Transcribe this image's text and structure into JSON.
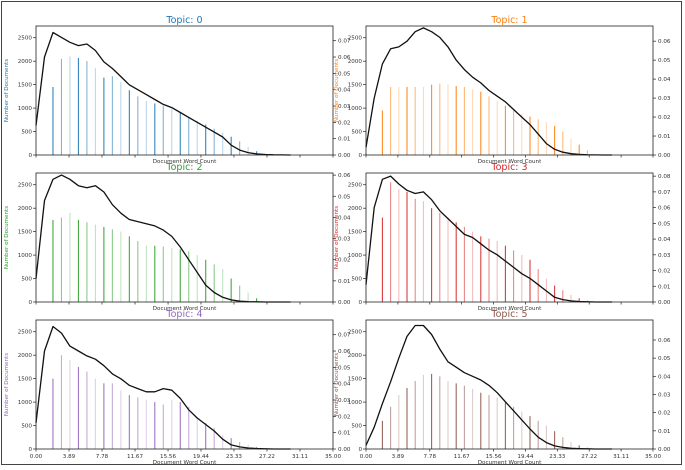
{
  "figure": {
    "xlabel": "Document Word Count",
    "ylabel": "Number of Documents",
    "xticks": [
      "0.00",
      "3.89",
      "7.78",
      "11.67",
      "15.56",
      "19.44",
      "23.33",
      "27.22",
      "31.11",
      "35.00"
    ],
    "left_ticks": [
      0,
      500,
      1000,
      1500,
      2000,
      2500
    ]
  },
  "chart_data": [
    {
      "type": "bar",
      "title": "Topic: 0",
      "color": "#1f77b4",
      "xlim": [
        0,
        35
      ],
      "ylim_left": [
        0,
        2750
      ],
      "ylim_right": [
        0,
        0.079
      ],
      "right_ticks": [
        "0.00",
        "0.01",
        "0.02",
        "0.03",
        "0.04",
        "0.05",
        "0.06",
        "0.07"
      ],
      "x": [
        2,
        3,
        4,
        5,
        6,
        7,
        8,
        9,
        10,
        11,
        12,
        13,
        14,
        15,
        16,
        17,
        18,
        19,
        20,
        21,
        22,
        23,
        24,
        25,
        26,
        27
      ],
      "values": [
        1450,
        2050,
        2100,
        2070,
        2000,
        1850,
        1650,
        1680,
        1550,
        1380,
        1250,
        1150,
        1100,
        1050,
        980,
        900,
        820,
        730,
        650,
        560,
        480,
        390,
        290,
        170,
        80,
        30
      ],
      "density_x": [
        0,
        1,
        2,
        3,
        4,
        5,
        6,
        7,
        8,
        9,
        10,
        11,
        12,
        13,
        14,
        15,
        16,
        17,
        18,
        19,
        20,
        21,
        22,
        23,
        24,
        25,
        26,
        27,
        28,
        29,
        30
      ],
      "density_y": [
        0.018,
        0.06,
        0.075,
        0.072,
        0.069,
        0.067,
        0.068,
        0.064,
        0.057,
        0.053,
        0.048,
        0.043,
        0.04,
        0.037,
        0.034,
        0.031,
        0.029,
        0.026,
        0.023,
        0.02,
        0.017,
        0.014,
        0.011,
        0.006,
        0.003,
        0.0015,
        0.0007,
        0.0003,
        0.0001,
        5e-05,
        0
      ]
    },
    {
      "type": "bar",
      "title": "Topic: 1",
      "color": "#ff7f0e",
      "xlim": [
        0,
        35
      ],
      "ylim_left": [
        0,
        2750
      ],
      "ylim_right": [
        0,
        0.068
      ],
      "right_ticks": [
        "0.00",
        "0.01",
        "0.02",
        "0.03",
        "0.04",
        "0.05",
        "0.06"
      ],
      "x": [
        2,
        3,
        4,
        5,
        6,
        7,
        8,
        9,
        10,
        11,
        12,
        13,
        14,
        15,
        16,
        17,
        18,
        19,
        20,
        21,
        22,
        23,
        24,
        25,
        26,
        27
      ],
      "values": [
        950,
        1450,
        1450,
        1450,
        1450,
        1450,
        1500,
        1520,
        1500,
        1470,
        1450,
        1400,
        1350,
        1250,
        1150,
        1050,
        950,
        880,
        820,
        760,
        700,
        620,
        500,
        350,
        220,
        100
      ],
      "density_x": [
        0,
        1,
        2,
        3,
        4,
        5,
        6,
        7,
        8,
        9,
        10,
        11,
        12,
        13,
        14,
        15,
        16,
        17,
        18,
        19,
        20,
        21,
        22,
        23,
        24,
        25,
        26,
        27,
        28,
        29,
        30
      ],
      "density_y": [
        0.004,
        0.03,
        0.048,
        0.056,
        0.057,
        0.06,
        0.065,
        0.067,
        0.065,
        0.062,
        0.057,
        0.05,
        0.045,
        0.041,
        0.038,
        0.034,
        0.031,
        0.028,
        0.024,
        0.02,
        0.016,
        0.011,
        0.006,
        0.003,
        0.0015,
        0.0007,
        0.0003,
        0.0001,
        5e-05,
        0,
        0
      ]
    },
    {
      "type": "bar",
      "title": "Topic: 2",
      "color": "#2ca02c",
      "xlim": [
        0,
        35
      ],
      "ylim_left": [
        0,
        2750
      ],
      "ylim_right": [
        0,
        0.061
      ],
      "right_ticks": [
        "0.00",
        "0.01",
        "0.02",
        "0.03",
        "0.04",
        "0.05",
        "0.06"
      ],
      "x": [
        2,
        3,
        4,
        5,
        6,
        7,
        8,
        9,
        10,
        11,
        12,
        13,
        14,
        15,
        16,
        17,
        18,
        19,
        20,
        21,
        22,
        23,
        24,
        25,
        26
      ],
      "values": [
        1750,
        1800,
        1900,
        1750,
        1700,
        1650,
        1600,
        1550,
        1500,
        1400,
        1300,
        1200,
        1200,
        1180,
        1150,
        1120,
        1080,
        1000,
        900,
        800,
        700,
        500,
        350,
        200,
        80
      ],
      "density_x": [
        0,
        1,
        2,
        3,
        4,
        5,
        6,
        7,
        8,
        9,
        10,
        11,
        12,
        13,
        14,
        15,
        16,
        17,
        18,
        19,
        20,
        21,
        22,
        23,
        24,
        25,
        26,
        27,
        28,
        29,
        30
      ],
      "density_y": [
        0.011,
        0.048,
        0.058,
        0.06,
        0.058,
        0.055,
        0.054,
        0.055,
        0.052,
        0.046,
        0.042,
        0.039,
        0.038,
        0.037,
        0.036,
        0.034,
        0.031,
        0.026,
        0.02,
        0.014,
        0.008,
        0.0045,
        0.0022,
        0.001,
        0.0004,
        0.0002,
        0.0001,
        0,
        0,
        0,
        0
      ]
    },
    {
      "type": "bar",
      "title": "Topic: 3",
      "color": "#d62728",
      "xlim": [
        0,
        35
      ],
      "ylim_left": [
        0,
        2750
      ],
      "ylim_right": [
        0,
        0.082
      ],
      "right_ticks": [
        "0.00",
        "0.01",
        "0.02",
        "0.03",
        "0.04",
        "0.05",
        "0.06",
        "0.07",
        "0.08"
      ],
      "x": [
        2,
        3,
        4,
        5,
        6,
        7,
        8,
        9,
        10,
        11,
        12,
        13,
        14,
        15,
        16,
        17,
        18,
        19,
        20,
        21,
        22,
        23,
        24,
        25,
        26,
        27
      ],
      "values": [
        1800,
        2550,
        2400,
        2350,
        2200,
        2150,
        2000,
        1900,
        1800,
        1700,
        1600,
        1500,
        1400,
        1350,
        1300,
        1200,
        1100,
        1000,
        900,
        700,
        500,
        350,
        250,
        150,
        80,
        30
      ],
      "density_x": [
        0,
        1,
        2,
        3,
        4,
        5,
        6,
        7,
        8,
        9,
        10,
        11,
        12,
        13,
        14,
        15,
        16,
        17,
        18,
        19,
        20,
        21,
        22,
        23,
        24,
        25,
        26,
        27,
        28,
        29,
        30
      ],
      "density_y": [
        0.011,
        0.06,
        0.078,
        0.08,
        0.075,
        0.071,
        0.069,
        0.07,
        0.065,
        0.058,
        0.053,
        0.048,
        0.043,
        0.041,
        0.037,
        0.033,
        0.03,
        0.026,
        0.022,
        0.018,
        0.015,
        0.011,
        0.007,
        0.003,
        0.0015,
        0.0007,
        0.0003,
        0.0001,
        0,
        0,
        0
      ]
    },
    {
      "type": "bar",
      "title": "Topic: 4",
      "color": "#9467bd",
      "xlim": [
        0,
        35
      ],
      "ylim_left": [
        0,
        2750
      ],
      "ylim_right": [
        0,
        0.079
      ],
      "right_ticks": [
        "0.00",
        "0.01",
        "0.02",
        "0.03",
        "0.04",
        "0.05",
        "0.06",
        "0.07"
      ],
      "x": [
        2,
        3,
        4,
        5,
        6,
        7,
        8,
        9,
        10,
        11,
        12,
        13,
        14,
        15,
        16,
        17,
        18,
        19,
        20,
        21,
        22,
        23,
        24,
        25,
        26,
        27
      ],
      "values": [
        1500,
        2000,
        1900,
        1750,
        1650,
        1500,
        1400,
        1400,
        1250,
        1150,
        1100,
        1050,
        1000,
        950,
        1050,
        1000,
        900,
        650,
        550,
        450,
        300,
        230,
        150,
        90,
        40,
        10
      ],
      "density_x": [
        0,
        1,
        2,
        3,
        4,
        5,
        6,
        7,
        8,
        9,
        10,
        11,
        12,
        13,
        14,
        15,
        16,
        17,
        18,
        19,
        20,
        21,
        22,
        23,
        24,
        25,
        26,
        27,
        28,
        29,
        30
      ],
      "density_y": [
        0.016,
        0.06,
        0.075,
        0.071,
        0.063,
        0.06,
        0.057,
        0.055,
        0.051,
        0.046,
        0.043,
        0.039,
        0.037,
        0.035,
        0.035,
        0.037,
        0.036,
        0.031,
        0.024,
        0.019,
        0.015,
        0.011,
        0.006,
        0.0025,
        0.0013,
        0.0006,
        0.0003,
        0.0001,
        0,
        0,
        0
      ]
    },
    {
      "type": "bar",
      "title": "Topic: 5",
      "color": "#8c564b",
      "xlim": [
        0,
        35
      ],
      "ylim_left": [
        0,
        2750
      ],
      "ylim_right": [
        0,
        0.071
      ],
      "right_ticks": [
        "0.00",
        "0.01",
        "0.02",
        "0.03",
        "0.04",
        "0.05",
        "0.06"
      ],
      "x": [
        2,
        3,
        4,
        5,
        6,
        7,
        8,
        9,
        10,
        11,
        12,
        13,
        14,
        15,
        16,
        17,
        18,
        19,
        20,
        21,
        22,
        23,
        24,
        25,
        26,
        27
      ],
      "values": [
        600,
        900,
        1150,
        1300,
        1450,
        1580,
        1600,
        1550,
        1450,
        1400,
        1350,
        1280,
        1200,
        1150,
        1100,
        1000,
        900,
        800,
        700,
        600,
        500,
        380,
        250,
        150,
        80,
        30
      ],
      "density_x": [
        0,
        1,
        2,
        3,
        4,
        5,
        6,
        7,
        8,
        9,
        10,
        11,
        12,
        13,
        14,
        15,
        16,
        17,
        18,
        19,
        20,
        21,
        22,
        23,
        24,
        25,
        26,
        27,
        28,
        29,
        30
      ],
      "density_y": [
        0.002,
        0.012,
        0.025,
        0.037,
        0.05,
        0.062,
        0.068,
        0.068,
        0.063,
        0.055,
        0.048,
        0.045,
        0.042,
        0.04,
        0.038,
        0.035,
        0.031,
        0.026,
        0.021,
        0.016,
        0.011,
        0.0065,
        0.0035,
        0.0017,
        0.0009,
        0.0004,
        0.0002,
        0.0001,
        0,
        0,
        0
      ]
    }
  ]
}
